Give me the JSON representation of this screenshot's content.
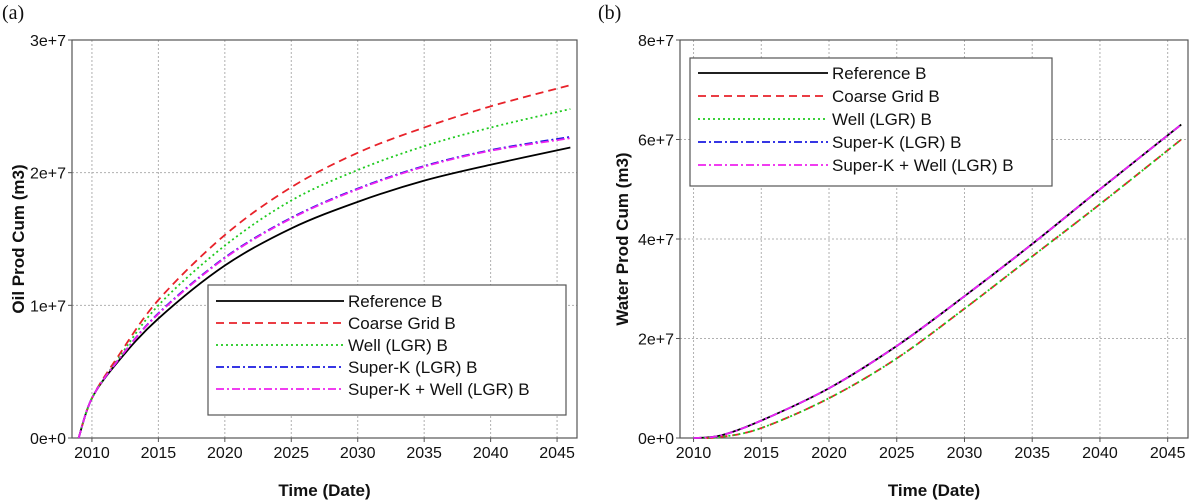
{
  "chart_data": [
    {
      "type": "line",
      "panel_label": "(a)",
      "title": "",
      "xlabel": "Time (Date)",
      "ylabel": "Oil Prod Cum (m3)",
      "xlim": [
        2008.5,
        2046.5
      ],
      "ylim": [
        0,
        30000000
      ],
      "xticks": [
        2010,
        2015,
        2020,
        2025,
        2030,
        2035,
        2040,
        2045
      ],
      "xtick_labels": [
        "2010",
        "2015",
        "2020",
        "2025",
        "2030",
        "2035",
        "2040",
        "2045"
      ],
      "yticks": [
        0,
        10000000,
        20000000,
        30000000
      ],
      "ytick_labels": [
        "0e+0",
        "1e+7",
        "2e+7",
        "3e+7"
      ],
      "grid": true,
      "legend_position": "lower-right",
      "x": [
        2009,
        2010,
        2012,
        2015,
        2020,
        2025,
        2030,
        2035,
        2040,
        2046
      ],
      "series": [
        {
          "name": "Reference B",
          "color": "#000000",
          "dash": "",
          "values": [
            0,
            3000000,
            5800000,
            9000000,
            13000000,
            15800000,
            17800000,
            19400000,
            20600000,
            21900000
          ]
        },
        {
          "name": "Coarse Grid B",
          "color": "#e8222a",
          "dash": "8 5",
          "values": [
            0,
            3000000,
            6200000,
            10400000,
            15300000,
            18900000,
            21500000,
            23400000,
            25000000,
            26600000
          ]
        },
        {
          "name": "Well (LGR) B",
          "color": "#1fca1f",
          "dash": "2 3",
          "values": [
            0,
            3000000,
            6000000,
            10000000,
            14500000,
            17900000,
            20200000,
            22000000,
            23400000,
            24800000
          ]
        },
        {
          "name": "Super-K (LGR) B",
          "color": "#1a1ae0",
          "dash": "8 3 2 3",
          "values": [
            0,
            3000000,
            5900000,
            9400000,
            13600000,
            16600000,
            18800000,
            20500000,
            21700000,
            22700000
          ]
        },
        {
          "name": "Super-K + Well (LGR) B",
          "color": "#ee22ee",
          "dash": "8 3 2 3",
          "values": [
            0,
            3000000,
            5900000,
            9350000,
            13550000,
            16550000,
            18750000,
            20450000,
            21650000,
            22600000
          ]
        }
      ]
    },
    {
      "type": "line",
      "panel_label": "(b)",
      "title": "",
      "xlabel": "Time (Date)",
      "ylabel": "Water Prod Cum (m3)",
      "xlim": [
        2009,
        2046.5
      ],
      "ylim": [
        0,
        80000000
      ],
      "xticks": [
        2010,
        2015,
        2020,
        2025,
        2030,
        2035,
        2040,
        2045
      ],
      "xtick_labels": [
        "2010",
        "2015",
        "2020",
        "2025",
        "2030",
        "2035",
        "2040",
        "2045"
      ],
      "yticks": [
        0,
        20000000,
        40000000,
        60000000,
        80000000
      ],
      "ytick_labels": [
        "0e+0",
        "2e+7",
        "4e+7",
        "6e+7",
        "8e+7"
      ],
      "grid": true,
      "legend_position": "top-left",
      "x": [
        2010,
        2012,
        2015,
        2020,
        2025,
        2030,
        2035,
        2040,
        2046
      ],
      "series": [
        {
          "name": "Reference B",
          "color": "#000000",
          "dash": "",
          "values": [
            0,
            500000,
            3500000,
            10000000,
            18500000,
            28500000,
            39000000,
            50000000,
            63000000
          ]
        },
        {
          "name": "Coarse Grid B",
          "color": "#e8222a",
          "dash": "8 5",
          "values": [
            0,
            200000,
            2000000,
            8000000,
            16000000,
            26000000,
            36500000,
            47000000,
            60000000
          ]
        },
        {
          "name": "Well (LGR) B",
          "color": "#1fca1f",
          "dash": "2 3",
          "values": [
            0,
            200000,
            2000000,
            8000000,
            16000000,
            26000000,
            36500000,
            47000000,
            60000000
          ]
        },
        {
          "name": "Super-K (LGR) B",
          "color": "#1a1ae0",
          "dash": "8 3 2 3",
          "values": [
            0,
            500000,
            3500000,
            10000000,
            18500000,
            28500000,
            39000000,
            50000000,
            63000000
          ]
        },
        {
          "name": "Super-K + Well (LGR) B",
          "color": "#ee22ee",
          "dash": "8 3 2 3",
          "values": [
            0,
            500000,
            3500000,
            10000000,
            18500000,
            28500000,
            39000000,
            50000000,
            63000000
          ]
        }
      ]
    }
  ]
}
